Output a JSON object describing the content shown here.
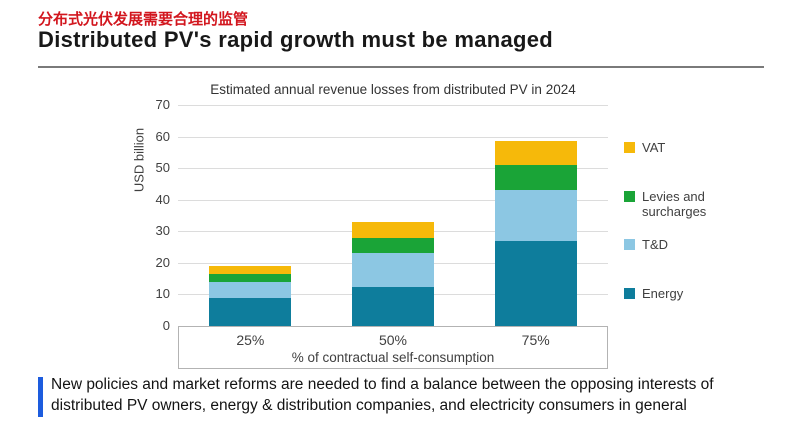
{
  "header": {
    "cn_title": "分布式光伏发展需要合理的监管",
    "cn_title_color": "#d2161e",
    "en_title": "Distributed PV's rapid growth must be managed"
  },
  "chart_data": {
    "type": "bar",
    "stacked": true,
    "title": "Estimated annual revenue losses from distributed PV in 2024",
    "ylabel": "USD billion",
    "xlabel": "% of contractual self-consumption",
    "categories": [
      "25%",
      "50%",
      "75%"
    ],
    "series": [
      {
        "name": "Energy",
        "color": "#0e7d9c",
        "values": [
          9,
          12.5,
          27
        ]
      },
      {
        "name": "T&D",
        "color": "#8cc7e3",
        "values": [
          5,
          10.5,
          16
        ]
      },
      {
        "name": "Levies and surcharges",
        "color": "#1aa437",
        "values": [
          2.5,
          5,
          8
        ]
      },
      {
        "name": "VAT",
        "color": "#f6b90a",
        "values": [
          2.5,
          5,
          7.5
        ]
      }
    ],
    "ylim": [
      0,
      70
    ],
    "yticks": [
      0,
      10,
      20,
      30,
      40,
      50,
      60,
      70
    ],
    "grid": true,
    "legend_position": "right",
    "legend_order": [
      "VAT",
      "Levies and surcharges",
      "T&D",
      "Energy"
    ]
  },
  "footnote": {
    "text": "New policies and market reforms are needed to find a balance between the opposing interests of distributed PV owners, energy & distribution companies, and electricity consumers in general",
    "accent_color": "#1d5cde"
  }
}
